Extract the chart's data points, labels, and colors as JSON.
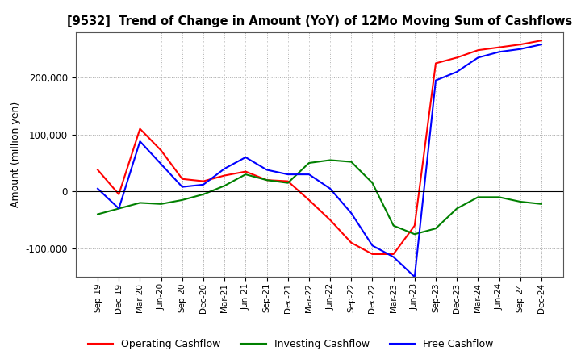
{
  "title": "[9532]  Trend of Change in Amount (YoY) of 12Mo Moving Sum of Cashflows",
  "ylabel": "Amount (million yen)",
  "x_labels": [
    "Sep-19",
    "Dec-19",
    "Mar-20",
    "Jun-20",
    "Sep-20",
    "Dec-20",
    "Mar-21",
    "Jun-21",
    "Sep-21",
    "Dec-21",
    "Mar-22",
    "Jun-22",
    "Sep-22",
    "Dec-22",
    "Mar-23",
    "Jun-23",
    "Sep-23",
    "Dec-23",
    "Mar-24",
    "Jun-24",
    "Sep-24",
    "Dec-24"
  ],
  "operating": [
    38000,
    -5000,
    110000,
    72000,
    22000,
    18000,
    28000,
    35000,
    20000,
    18000,
    -15000,
    -50000,
    -90000,
    -110000,
    -110000,
    -60000,
    225000,
    235000,
    248000,
    253000,
    258000,
    265000
  ],
  "investing": [
    -40000,
    -30000,
    -20000,
    -22000,
    -15000,
    -5000,
    10000,
    30000,
    20000,
    15000,
    50000,
    55000,
    52000,
    15000,
    -60000,
    -75000,
    -65000,
    -30000,
    -10000,
    -10000,
    -18000,
    -22000
  ],
  "free": [
    5000,
    -30000,
    88000,
    48000,
    8000,
    12000,
    40000,
    60000,
    38000,
    30000,
    30000,
    5000,
    -38000,
    -95000,
    -115000,
    -150000,
    195000,
    210000,
    235000,
    245000,
    250000,
    258000
  ],
  "operating_color": "#ff0000",
  "investing_color": "#008000",
  "free_color": "#0000ff",
  "ylim_min": -150000,
  "ylim_max": 280000,
  "yticks": [
    -100000,
    0,
    100000,
    200000
  ],
  "background_color": "#ffffff",
  "grid_color": "#aaaaaa"
}
